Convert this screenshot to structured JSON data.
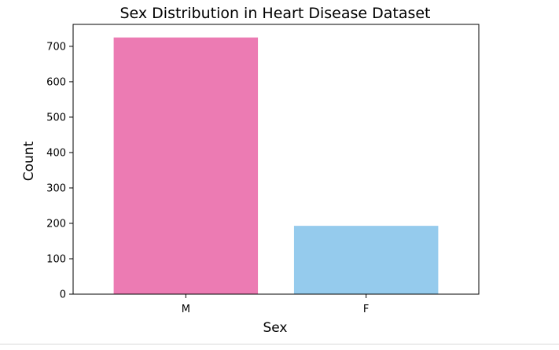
{
  "chart_data": {
    "type": "bar",
    "title": "Sex Distribution in Heart Disease Dataset",
    "xlabel": "Sex",
    "ylabel": "Count",
    "categories": [
      "M",
      "F"
    ],
    "values": [
      725,
      193
    ],
    "colors": [
      "#ec7bb3",
      "#95cbed"
    ],
    "ylim": [
      0,
      762
    ],
    "yticks": [
      0,
      100,
      200,
      300,
      400,
      500,
      600,
      700
    ],
    "grid": false,
    "legend": false
  }
}
